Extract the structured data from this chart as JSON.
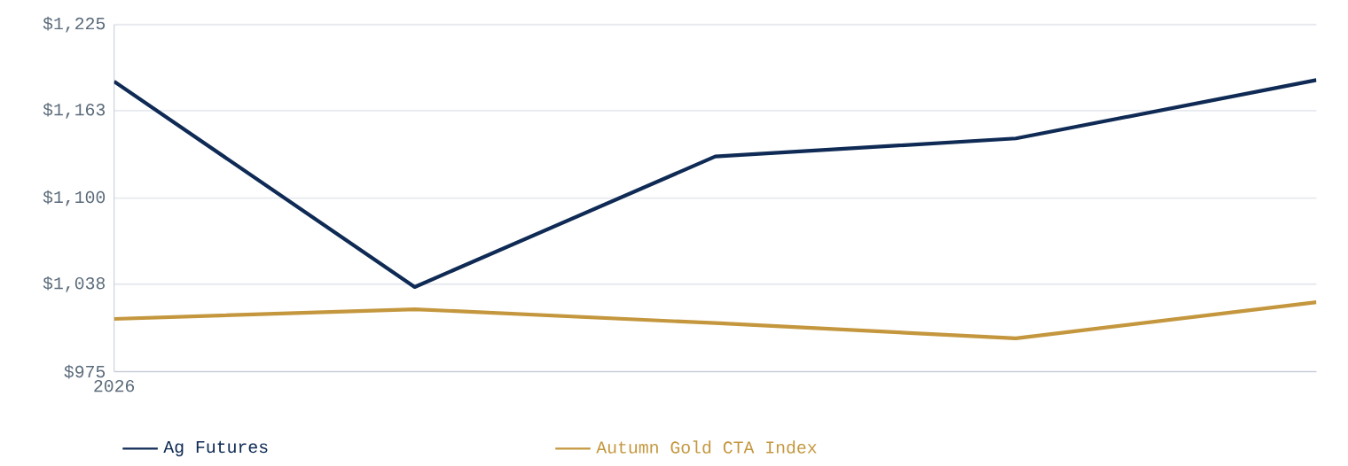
{
  "chart_data": {
    "type": "line",
    "categories": [
      "2026",
      null,
      null,
      null,
      null
    ],
    "series": [
      {
        "name": "Ag Futures",
        "color": "#0f2b55",
        "values": [
          1184,
          1036,
          1130,
          1143,
          1185
        ]
      },
      {
        "name": "Autumn Gold CTA Index",
        "color": "#c4973e",
        "values": [
          1013,
          1020,
          1010,
          999,
          1025
        ]
      }
    ],
    "ylim": [
      975,
      1225
    ],
    "yticks": [
      {
        "value": 975,
        "label": "$975"
      },
      {
        "value": 1038,
        "label": "$1,038"
      },
      {
        "value": 1100,
        "label": "$1,100"
      },
      {
        "value": 1163,
        "label": "$1,163"
      },
      {
        "value": 1225,
        "label": "$1,225"
      }
    ],
    "grid": "y",
    "legend": "bottom"
  }
}
